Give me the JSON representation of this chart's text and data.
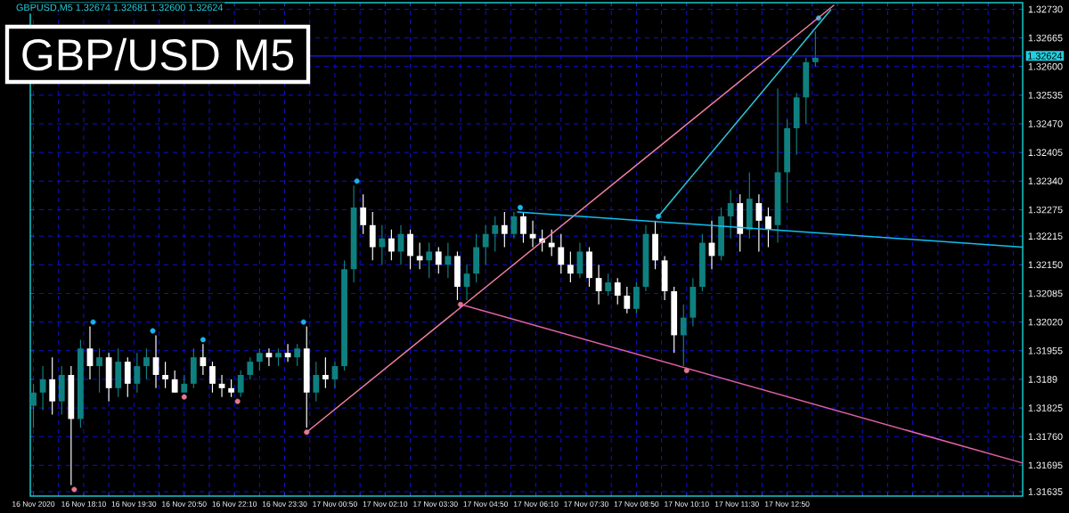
{
  "chart_data": {
    "type": "candlestick",
    "title": "GBP/USD M5",
    "annotations": [
      "GBPUSD,M5 1.32674 1.32681 1.32600 1.32624"
    ],
    "x": [
      "2020-11-16T16:50",
      "2020-11-16T17:05",
      "2020-11-16T17:20",
      "2020-11-16T17:35",
      "2020-11-16T17:50",
      "2020-11-16T18:05",
      "2020-11-16T18:20",
      "2020-11-16T18:35",
      "2020-11-16T18:50",
      "2020-11-16T19:05",
      "2020-11-16T19:20",
      "2020-11-16T19:35",
      "2020-11-16T19:50",
      "2020-11-16T20:05",
      "2020-11-16T20:20",
      "2020-11-16T20:35",
      "2020-11-16T20:50",
      "2020-11-16T21:05",
      "2020-11-16T21:20",
      "2020-11-16T21:35",
      "2020-11-16T21:50",
      "2020-11-16T22:05",
      "2020-11-16T22:20",
      "2020-11-16T22:35",
      "2020-11-16T22:50",
      "2020-11-16T23:05",
      "2020-11-16T23:20",
      "2020-11-16T23:35",
      "2020-11-16T23:50",
      "2020-11-17T00:05",
      "2020-11-17T00:20",
      "2020-11-17T00:35",
      "2020-11-17T00:50",
      "2020-11-17T01:05",
      "2020-11-17T01:20",
      "2020-11-17T01:35",
      "2020-11-17T01:50",
      "2020-11-17T02:05",
      "2020-11-17T02:20",
      "2020-11-17T02:35",
      "2020-11-17T02:50",
      "2020-11-17T03:05",
      "2020-11-17T03:20",
      "2020-11-17T03:35",
      "2020-11-17T03:50",
      "2020-11-17T04:05",
      "2020-11-17T04:20",
      "2020-11-17T04:35",
      "2020-11-17T04:50",
      "2020-11-17T05:05",
      "2020-11-17T05:20",
      "2020-11-17T05:35",
      "2020-11-17T05:50",
      "2020-11-17T06:05",
      "2020-11-17T06:20",
      "2020-11-17T06:35",
      "2020-11-17T06:50",
      "2020-11-17T07:05",
      "2020-11-17T07:20",
      "2020-11-17T07:35",
      "2020-11-17T07:50",
      "2020-11-17T08:05",
      "2020-11-17T08:20",
      "2020-11-17T08:35",
      "2020-11-17T08:50",
      "2020-11-17T09:05",
      "2020-11-17T09:20",
      "2020-11-17T09:35",
      "2020-11-17T09:50",
      "2020-11-17T10:05",
      "2020-11-17T10:20",
      "2020-11-17T10:35",
      "2020-11-17T10:50",
      "2020-11-17T11:05",
      "2020-11-17T11:20",
      "2020-11-17T11:35",
      "2020-11-17T11:50",
      "2020-11-17T12:05",
      "2020-11-17T12:20",
      "2020-11-17T12:35",
      "2020-11-17T12:50",
      "2020-11-17T13:05",
      "2020-11-17T13:20",
      "2020-11-17T13:35"
    ],
    "ohlc": [
      [
        1.3183,
        1.3188,
        1.3178,
        1.3186
      ],
      [
        1.3186,
        1.3192,
        1.3182,
        1.3189
      ],
      [
        1.3189,
        1.3194,
        1.3181,
        1.3184
      ],
      [
        1.3184,
        1.3192,
        1.3181,
        1.319
      ],
      [
        1.319,
        1.3192,
        1.3165,
        1.318
      ],
      [
        1.318,
        1.3198,
        1.3178,
        1.3196
      ],
      [
        1.3196,
        1.3201,
        1.3189,
        1.3192
      ],
      [
        1.3192,
        1.3196,
        1.3186,
        1.3194
      ],
      [
        1.3194,
        1.3195,
        1.3184,
        1.3187
      ],
      [
        1.3187,
        1.3196,
        1.3185,
        1.3193
      ],
      [
        1.3193,
        1.3194,
        1.3185,
        1.3188
      ],
      [
        1.3188,
        1.3195,
        1.3186,
        1.3192
      ],
      [
        1.3192,
        1.3196,
        1.3189,
        1.3194
      ],
      [
        1.3194,
        1.3199,
        1.3187,
        1.319
      ],
      [
        1.319,
        1.3193,
        1.3187,
        1.3189
      ],
      [
        1.3189,
        1.3191,
        1.3186,
        1.3186
      ],
      [
        1.3186,
        1.319,
        1.3186,
        1.3188
      ],
      [
        1.3188,
        1.3196,
        1.3187,
        1.3194
      ],
      [
        1.3194,
        1.3197,
        1.319,
        1.3192
      ],
      [
        1.3192,
        1.3193,
        1.3186,
        1.3188
      ],
      [
        1.3188,
        1.319,
        1.3185,
        1.3187
      ],
      [
        1.3187,
        1.3189,
        1.3185,
        1.3186
      ],
      [
        1.3186,
        1.3191,
        1.3185,
        1.319
      ],
      [
        1.319,
        1.3194,
        1.3189,
        1.3193
      ],
      [
        1.3193,
        1.3196,
        1.3191,
        1.3195
      ],
      [
        1.3195,
        1.3196,
        1.3192,
        1.3194
      ],
      [
        1.3194,
        1.3196,
        1.3192,
        1.3195
      ],
      [
        1.3195,
        1.3197,
        1.3193,
        1.3194
      ],
      [
        1.3194,
        1.3197,
        1.3192,
        1.3196
      ],
      [
        1.3196,
        1.3201,
        1.3178,
        1.3186
      ],
      [
        1.3186,
        1.3193,
        1.3184,
        1.319
      ],
      [
        1.319,
        1.3194,
        1.3187,
        1.3189
      ],
      [
        1.3189,
        1.3193,
        1.3187,
        1.3192
      ],
      [
        1.3192,
        1.3216,
        1.3191,
        1.3214
      ],
      [
        1.3214,
        1.3233,
        1.3211,
        1.3228
      ],
      [
        1.3228,
        1.3231,
        1.3222,
        1.3224
      ],
      [
        1.3224,
        1.3227,
        1.3216,
        1.3219
      ],
      [
        1.3219,
        1.3224,
        1.3215,
        1.3221
      ],
      [
        1.3221,
        1.3223,
        1.3216,
        1.3218
      ],
      [
        1.3218,
        1.3224,
        1.3215,
        1.3222
      ],
      [
        1.3222,
        1.3223,
        1.3214,
        1.3217
      ],
      [
        1.3217,
        1.322,
        1.3214,
        1.3216
      ],
      [
        1.3216,
        1.322,
        1.3212,
        1.3218
      ],
      [
        1.3218,
        1.3219,
        1.3213,
        1.3215
      ],
      [
        1.3215,
        1.322,
        1.3212,
        1.3217
      ],
      [
        1.3217,
        1.3218,
        1.3207,
        1.321
      ],
      [
        1.321,
        1.3215,
        1.3207,
        1.3213
      ],
      [
        1.3213,
        1.3222,
        1.3211,
        1.3219
      ],
      [
        1.3219,
        1.3224,
        1.3215,
        1.3222
      ],
      [
        1.3222,
        1.3226,
        1.3218,
        1.3224
      ],
      [
        1.3224,
        1.3227,
        1.3219,
        1.3222
      ],
      [
        1.3222,
        1.3227,
        1.3221,
        1.3226
      ],
      [
        1.3226,
        1.3227,
        1.322,
        1.3222
      ],
      [
        1.3222,
        1.3225,
        1.3219,
        1.3221
      ],
      [
        1.3221,
        1.3223,
        1.3218,
        1.322
      ],
      [
        1.322,
        1.3223,
        1.3217,
        1.3219
      ],
      [
        1.3219,
        1.3222,
        1.3213,
        1.3215
      ],
      [
        1.3215,
        1.3218,
        1.3211,
        1.3213
      ],
      [
        1.3213,
        1.322,
        1.3212,
        1.3218
      ],
      [
        1.3218,
        1.3219,
        1.321,
        1.3212
      ],
      [
        1.3212,
        1.3215,
        1.3206,
        1.3209
      ],
      [
        1.3209,
        1.3213,
        1.3208,
        1.3211
      ],
      [
        1.3211,
        1.3212,
        1.3206,
        1.3208
      ],
      [
        1.3208,
        1.321,
        1.3204,
        1.3205
      ],
      [
        1.3205,
        1.3211,
        1.3204,
        1.321
      ],
      [
        1.321,
        1.3224,
        1.3209,
        1.3222
      ],
      [
        1.3222,
        1.3225,
        1.3214,
        1.3216
      ],
      [
        1.3216,
        1.3217,
        1.3207,
        1.3209
      ],
      [
        1.3209,
        1.321,
        1.3195,
        1.3199
      ],
      [
        1.3199,
        1.3206,
        1.3192,
        1.3203
      ],
      [
        1.3203,
        1.3212,
        1.3201,
        1.321
      ],
      [
        1.321,
        1.3222,
        1.3209,
        1.322
      ],
      [
        1.322,
        1.3225,
        1.3214,
        1.3217
      ],
      [
        1.3217,
        1.3228,
        1.3216,
        1.3226
      ],
      [
        1.3226,
        1.3232,
        1.3221,
        1.3229
      ],
      [
        1.3229,
        1.3231,
        1.3218,
        1.3222
      ],
      [
        1.3223,
        1.3236,
        1.3221,
        1.323
      ],
      [
        1.3229,
        1.3231,
        1.3218,
        1.3225
      ],
      [
        1.3226,
        1.3228,
        1.3219,
        1.3223
      ],
      [
        1.3224,
        1.3255,
        1.322,
        1.3236
      ],
      [
        1.3236,
        1.3248,
        1.3229,
        1.3246
      ],
      [
        1.3246,
        1.3254,
        1.324,
        1.3253
      ],
      [
        1.3253,
        1.3262,
        1.3247,
        1.3261
      ],
      [
        1.3261,
        1.3268,
        1.326,
        1.3262
      ]
    ],
    "series": [
      {
        "type": "scatter",
        "color": "#1ab4f0",
        "marker": "circle",
        "x": [
          "2020-11-16T18:25",
          "2020-11-16T20:00",
          "2020-11-16T21:20",
          "2020-11-17T00:00",
          "2020-11-17T01:25",
          "2020-11-17T05:45",
          "2020-11-17T09:25",
          "2020-11-17T13:40"
        ],
        "values": [
          1.3202,
          1.32,
          1.3198,
          1.3202,
          1.3234,
          1.3228,
          1.3226,
          1.3271
        ]
      },
      {
        "type": "scatter",
        "color": "#e87890",
        "marker": "circle",
        "x": [
          "2020-11-16T17:55",
          "2020-11-16T20:50",
          "2020-11-16T22:15",
          "2020-11-17T00:05",
          "2020-11-17T04:10",
          "2020-11-17T10:10"
        ],
        "values": [
          1.3164,
          1.3185,
          1.3184,
          1.3177,
          1.3206,
          1.3191
        ]
      },
      {
        "type": "line",
        "color": "#f080a0",
        "x": [
          "2020-11-17T00:05",
          "2020-11-17T14:05"
        ],
        "values": [
          1.3177,
          1.3274
        ]
      },
      {
        "type": "line",
        "color": "#e060a8",
        "x": [
          "2020-11-17T04:10",
          "2020-11-17T19:05"
        ],
        "values": [
          1.3206,
          1.317
        ]
      },
      {
        "type": "line",
        "color": "#10c0f0",
        "x": [
          "2020-11-17T05:40",
          "2020-11-17T19:05"
        ],
        "values": [
          1.3227,
          1.3219
        ]
      },
      {
        "type": "line",
        "color": "#30c8d8",
        "x": [
          "2020-11-17T09:25",
          "2020-11-17T14:00"
        ],
        "values": [
          1.3226,
          1.3273
        ]
      }
    ],
    "xlim": [
      "2020-11-16T16:45",
      "2020-11-17T19:05"
    ],
    "ylim": [
      1.31625,
      1.32745
    ],
    "xticks": [
      {
        "value": "2020-11-16T16:50",
        "label": "16 Nov 2020"
      },
      {
        "value": "2020-11-16T17:30",
        "label": null
      },
      {
        "value": "2020-11-16T18:10",
        "label": "16 Nov 18:10"
      },
      {
        "value": "2020-11-16T18:50",
        "label": null
      },
      {
        "value": "2020-11-16T19:30",
        "label": "16 Nov 19:30"
      },
      {
        "value": "2020-11-16T20:10",
        "label": null
      },
      {
        "value": "2020-11-16T20:50",
        "label": "16 Nov 20:50"
      },
      {
        "value": "2020-11-16T21:30",
        "label": null
      },
      {
        "value": "2020-11-16T22:10",
        "label": "16 Nov 22:10"
      },
      {
        "value": "2020-11-16T22:50",
        "label": null
      },
      {
        "value": "2020-11-16T23:30",
        "label": "16 Nov 23:30"
      },
      {
        "value": "2020-11-17T00:10",
        "label": null
      },
      {
        "value": "2020-11-17T00:50",
        "label": "17 Nov 00:50"
      },
      {
        "value": "2020-11-17T01:30",
        "label": null
      },
      {
        "value": "2020-11-17T02:10",
        "label": "17 Nov 02:10"
      },
      {
        "value": "2020-11-17T02:50",
        "label": null
      },
      {
        "value": "2020-11-17T03:30",
        "label": "17 Nov 03:30"
      },
      {
        "value": "2020-11-17T04:10",
        "label": null
      },
      {
        "value": "2020-11-17T04:50",
        "label": "17 Nov 04:50"
      },
      {
        "value": "2020-11-17T05:30",
        "label": null
      },
      {
        "value": "2020-11-17T06:10",
        "label": "17 Nov 06:10"
      },
      {
        "value": "2020-11-17T06:50",
        "label": null
      },
      {
        "value": "2020-11-17T07:30",
        "label": "17 Nov 07:30"
      },
      {
        "value": "2020-11-17T08:10",
        "label": null
      },
      {
        "value": "2020-11-17T08:50",
        "label": "17 Nov 08:50"
      },
      {
        "value": "2020-11-17T09:30",
        "label": null
      },
      {
        "value": "2020-11-17T10:10",
        "label": "17 Nov 10:10"
      },
      {
        "value": "2020-11-17T10:50",
        "label": null
      },
      {
        "value": "2020-11-17T11:30",
        "label": "17 Nov 11:30"
      },
      {
        "value": "2020-11-17T12:10",
        "label": null
      },
      {
        "value": "2020-11-17T12:50",
        "label": "17 Nov 12:50"
      },
      {
        "value": "2020-11-17T13:30",
        "label": null
      },
      {
        "value": "2020-11-17T14:10",
        "label": null
      },
      {
        "value": "2020-11-17T14:50",
        "label": null
      },
      {
        "value": "2020-11-17T15:30",
        "label": null
      },
      {
        "value": "2020-11-17T16:10",
        "label": null
      },
      {
        "value": "2020-11-17T16:50",
        "label": null
      },
      {
        "value": "2020-11-17T17:30",
        "label": null
      },
      {
        "value": "2020-11-17T18:10",
        "label": null
      },
      {
        "value": "2020-11-17T18:50",
        "label": null
      }
    ],
    "yticks": [
      1.31635,
      1.31695,
      {
        "value": 1.3176,
        "label": "1.31760"
      },
      1.31825,
      1.3189,
      1.31955,
      {
        "value": 1.3202,
        "label": "1.32020"
      },
      1.32085,
      {
        "value": 1.3215,
        "label": "1.32150"
      },
      1.32215,
      1.32275,
      {
        "value": 1.3234,
        "label": "1.32340"
      },
      1.32405,
      {
        "value": 1.3247,
        "label": "1.32470"
      },
      1.32535,
      {
        "value": 1.326,
        "label": "1.32600"
      },
      1.32665,
      {
        "value": 1.3273,
        "label": "1.32730"
      }
    ],
    "grid": true,
    "ref_lines": [
      {
        "axis": "y",
        "value": 1.32624,
        "label": "1.32624",
        "color": "#1c1cf0"
      }
    ]
  }
}
